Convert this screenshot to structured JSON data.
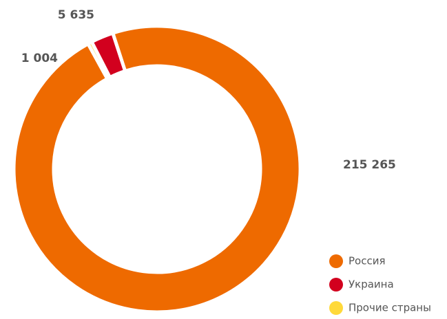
{
  "chart_data": {
    "type": "donut",
    "categories": [
      "Россия",
      "Украина",
      "Прочие страны"
    ],
    "values": [
      215265,
      5635,
      1004
    ],
    "value_labels": [
      "215 265",
      "5 635",
      "1 004"
    ],
    "colors": [
      "#ee6a00",
      "#d2001e",
      "#ffd93a"
    ],
    "legend": "bottom-right"
  }
}
